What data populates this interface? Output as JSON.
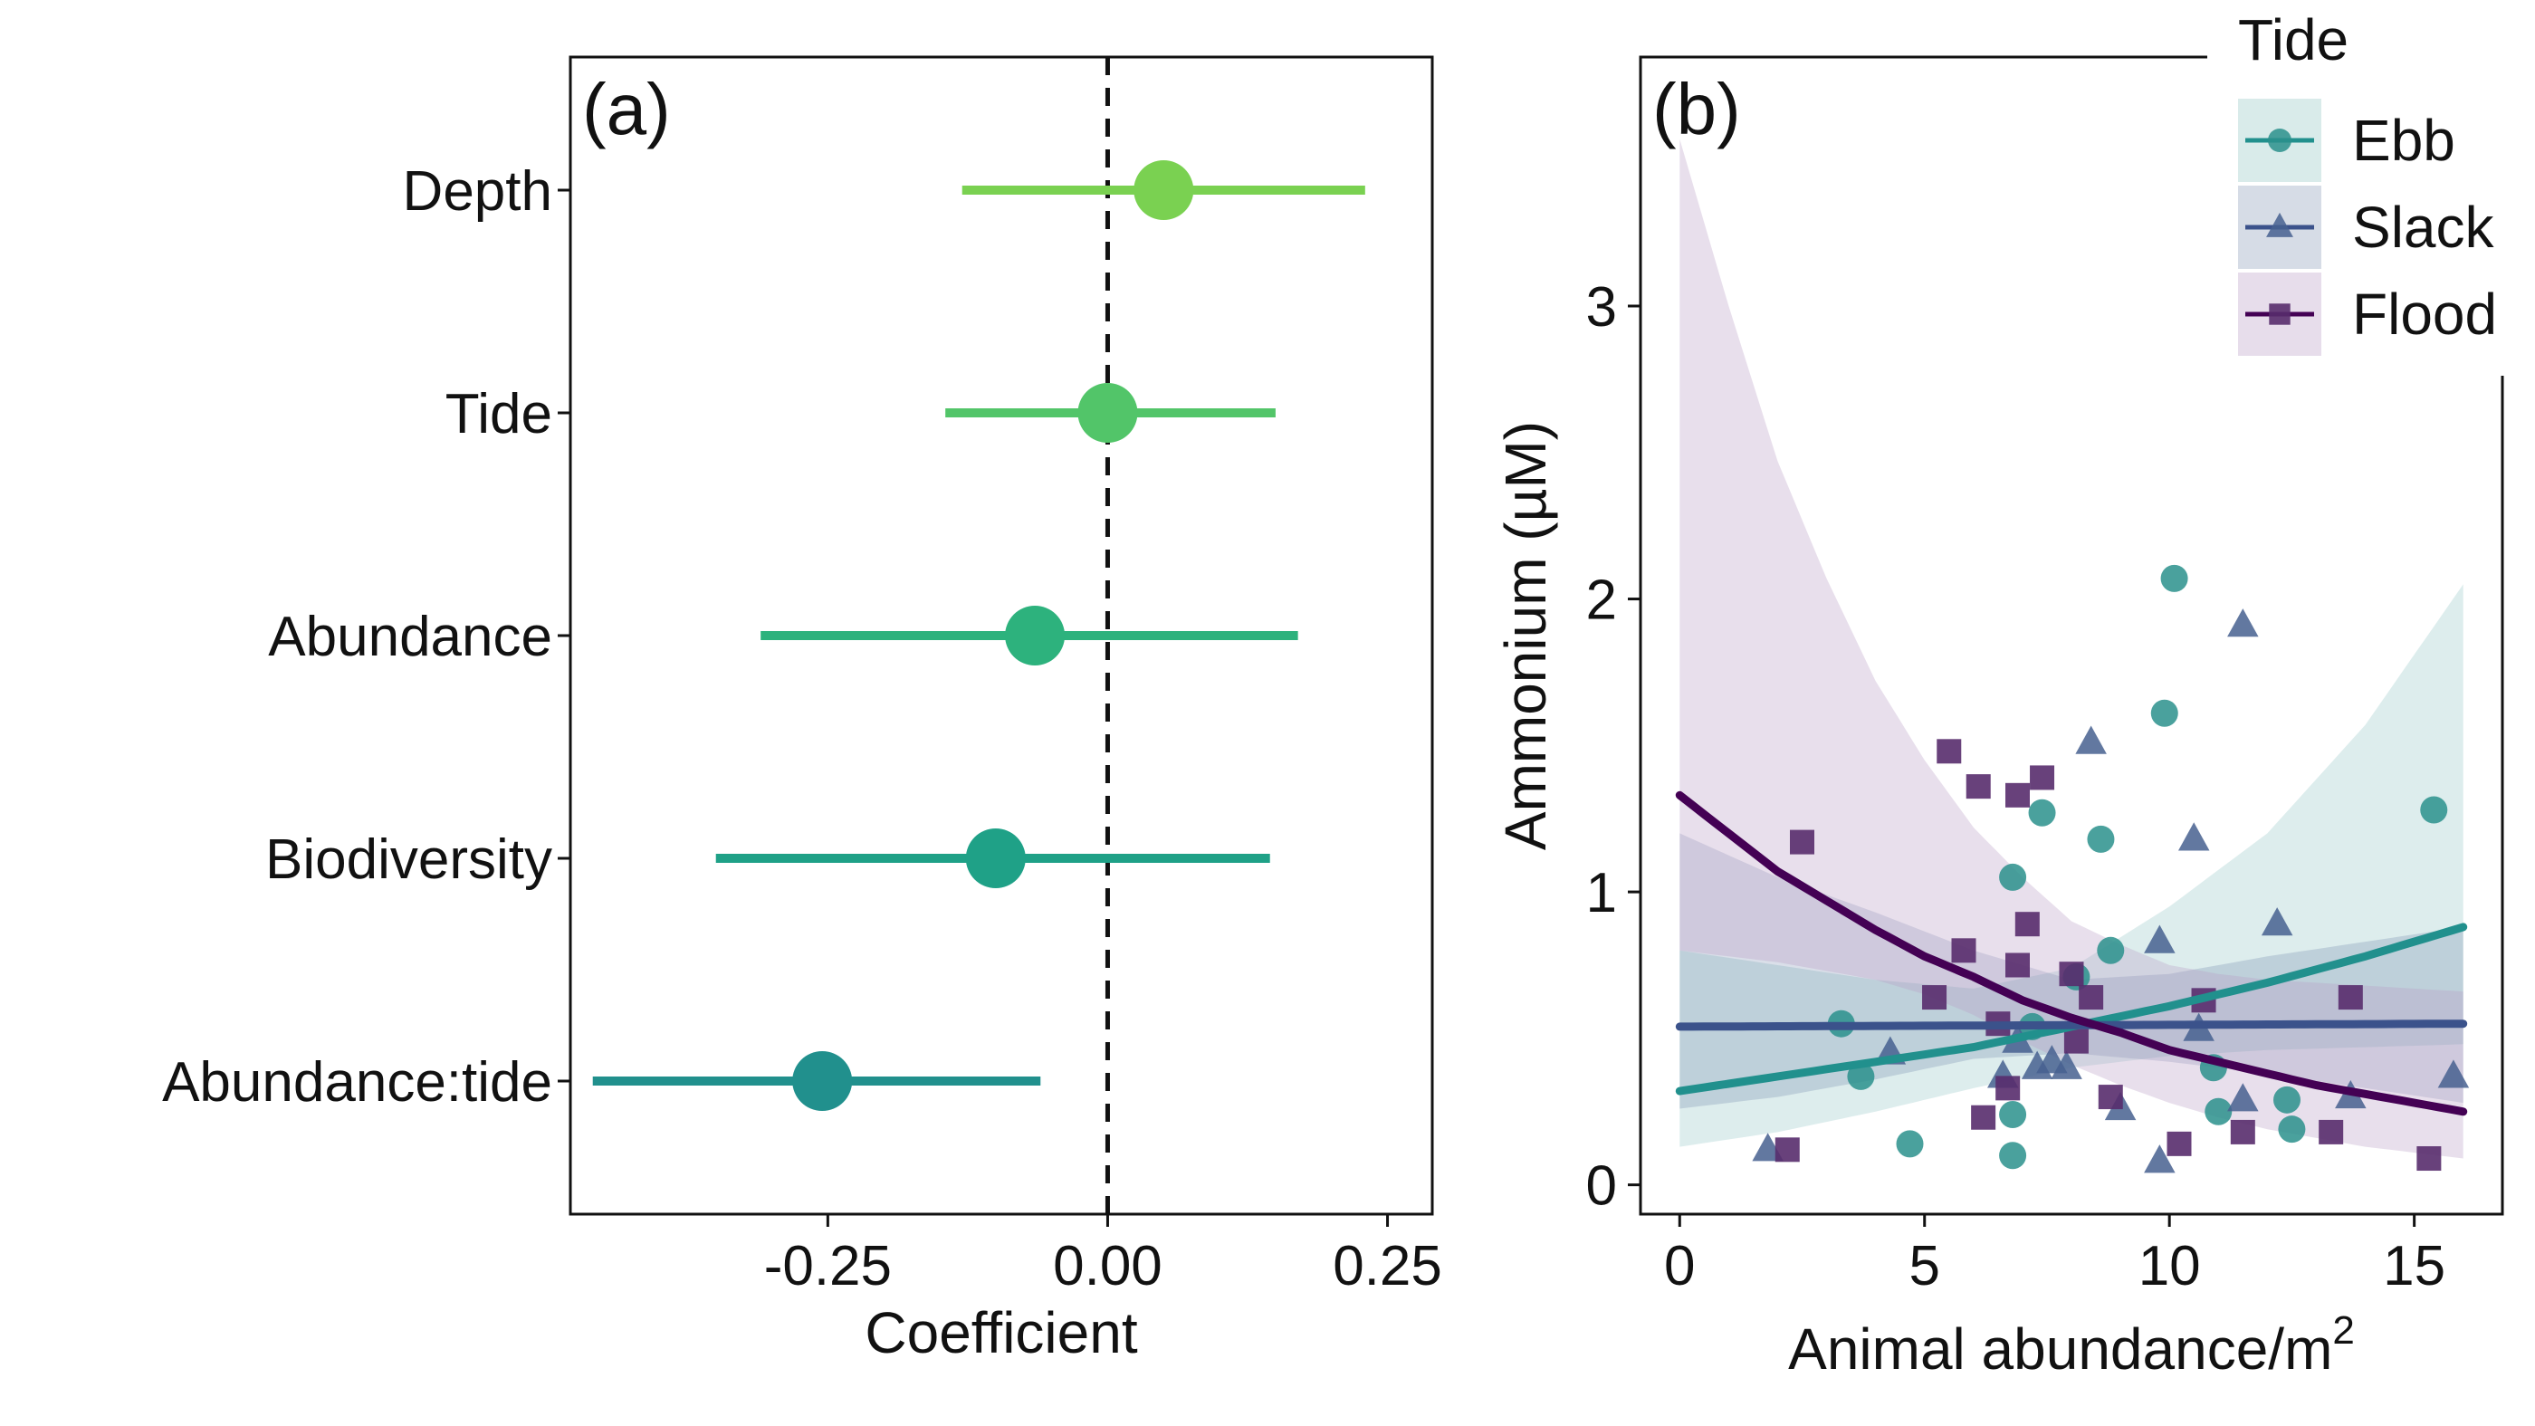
{
  "chart_data": [
    {
      "type": "scatter",
      "panel_label": "(a)",
      "subtype": "coefficient-plot",
      "xlabel": "Coefficient",
      "ylabel": "",
      "xlim": [
        -0.48,
        0.29
      ],
      "xticks": [
        -0.25,
        0.0,
        0.25
      ],
      "xtick_labels": [
        "-0.25",
        "0.00",
        "0.25"
      ],
      "reference_line_x": 0,
      "grid": false,
      "terms": [
        {
          "label": "Depth",
          "estimate": 0.05,
          "low": -0.13,
          "high": 0.23,
          "color": "#7AD151"
        },
        {
          "label": "Tide",
          "estimate": 0.0,
          "low": -0.145,
          "high": 0.15,
          "color": "#52C569"
        },
        {
          "label": "Abundance",
          "estimate": -0.065,
          "low": -0.31,
          "high": 0.17,
          "color": "#2DB27D"
        },
        {
          "label": "Biodiversity",
          "estimate": -0.1,
          "low": -0.35,
          "high": 0.145,
          "color": "#1FA187"
        },
        {
          "label": "Abundance:tide",
          "estimate": -0.255,
          "low": -0.46,
          "high": -0.06,
          "color": "#21908D"
        }
      ]
    },
    {
      "type": "scatter",
      "panel_label": "(b)",
      "xlabel": "Animal abundance/m",
      "xlabel_superscript": "2",
      "ylabel": "Ammonium (µM)",
      "xlim": [
        -0.8,
        16.8
      ],
      "ylim": [
        -0.1,
        3.85
      ],
      "xticks": [
        0,
        5,
        10,
        15
      ],
      "xtick_labels": [
        "0",
        "5",
        "10",
        "15"
      ],
      "yticks": [
        0,
        1,
        2,
        3
      ],
      "ytick_labels": [
        "0",
        "1",
        "2",
        "3"
      ],
      "grid": false,
      "legend": {
        "title": "Tide",
        "placement": "top-right"
      },
      "series": [
        {
          "name": "Ebb",
          "marker": "circle",
          "color": "#2A908C",
          "band_color": "#2A908C",
          "points": [
            [
              3.3,
              0.55
            ],
            [
              3.7,
              0.37
            ],
            [
              4.7,
              0.14
            ],
            [
              6.8,
              0.1
            ],
            [
              6.8,
              0.24
            ],
            [
              6.8,
              1.05
            ],
            [
              7.2,
              0.54
            ],
            [
              7.4,
              1.27
            ],
            [
              8.1,
              0.71
            ],
            [
              8.6,
              1.18
            ],
            [
              8.8,
              0.8
            ],
            [
              9.9,
              1.61
            ],
            [
              10.1,
              2.07
            ],
            [
              10.9,
              0.4
            ],
            [
              11.0,
              0.25
            ],
            [
              12.4,
              0.29
            ],
            [
              12.5,
              0.19
            ],
            [
              15.4,
              1.28
            ]
          ],
          "fit": [
            [
              0,
              0.32
            ],
            [
              2,
              0.37
            ],
            [
              4,
              0.42
            ],
            [
              6,
              0.47
            ],
            [
              8,
              0.54
            ],
            [
              10,
              0.61
            ],
            [
              12,
              0.69
            ],
            [
              14,
              0.78
            ],
            [
              16,
              0.88
            ]
          ],
          "band_low": [
            [
              0,
              0.13
            ],
            [
              2,
              0.18
            ],
            [
              4,
              0.25
            ],
            [
              6,
              0.33
            ],
            [
              8,
              0.4
            ],
            [
              10,
              0.44
            ],
            [
              12,
              0.46
            ],
            [
              14,
              0.47
            ],
            [
              16,
              0.48
            ]
          ],
          "band_high": [
            [
              0,
              0.8
            ],
            [
              2,
              0.75
            ],
            [
              4,
              0.7
            ],
            [
              6,
              0.67
            ],
            [
              8,
              0.74
            ],
            [
              10,
              0.95
            ],
            [
              12,
              1.2
            ],
            [
              14,
              1.57
            ],
            [
              16,
              2.05
            ]
          ]
        },
        {
          "name": "Slack",
          "marker": "triangle",
          "color": "#46608F",
          "band_color": "#46608F",
          "points": [
            [
              1.8,
              0.12
            ],
            [
              4.3,
              0.45
            ],
            [
              6.6,
              0.37
            ],
            [
              6.9,
              0.49
            ],
            [
              7.3,
              0.4
            ],
            [
              7.6,
              0.42
            ],
            [
              7.9,
              0.4
            ],
            [
              8.4,
              1.51
            ],
            [
              9.0,
              0.26
            ],
            [
              9.8,
              0.08
            ],
            [
              9.8,
              0.83
            ],
            [
              10.5,
              1.18
            ],
            [
              10.6,
              0.53
            ],
            [
              11.5,
              1.91
            ],
            [
              11.5,
              0.29
            ],
            [
              12.2,
              0.89
            ],
            [
              13.7,
              0.3
            ],
            [
              15.8,
              0.37
            ]
          ],
          "fit": [
            [
              0,
              0.54
            ],
            [
              16,
              0.55
            ]
          ],
          "band_low": [
            [
              0,
              0.26
            ],
            [
              2,
              0.3
            ],
            [
              4,
              0.36
            ],
            [
              6,
              0.43
            ],
            [
              8,
              0.45
            ],
            [
              10,
              0.42
            ],
            [
              12,
              0.38
            ],
            [
              14,
              0.33
            ],
            [
              16,
              0.28
            ]
          ],
          "band_high": [
            [
              0,
              1.2
            ],
            [
              2,
              1.05
            ],
            [
              4,
              0.93
            ],
            [
              6,
              0.8
            ],
            [
              8,
              0.7
            ],
            [
              10,
              0.72
            ],
            [
              12,
              0.78
            ],
            [
              14,
              0.83
            ],
            [
              16,
              0.88
            ]
          ]
        },
        {
          "name": "Flood",
          "marker": "square",
          "color": "#582C6D",
          "band_color": "#B99BC4",
          "points": [
            [
              2.2,
              0.12
            ],
            [
              2.5,
              1.17
            ],
            [
              5.2,
              0.64
            ],
            [
              5.5,
              1.48
            ],
            [
              5.8,
              0.8
            ],
            [
              6.1,
              1.36
            ],
            [
              6.2,
              0.23
            ],
            [
              6.5,
              0.55
            ],
            [
              6.7,
              0.33
            ],
            [
              6.9,
              1.33
            ],
            [
              6.9,
              0.75
            ],
            [
              7.1,
              0.89
            ],
            [
              7.4,
              1.39
            ],
            [
              8.0,
              0.72
            ],
            [
              8.1,
              0.49
            ],
            [
              8.4,
              0.64
            ],
            [
              8.8,
              0.3
            ],
            [
              10.2,
              0.14
            ],
            [
              10.7,
              0.63
            ],
            [
              11.5,
              0.18
            ],
            [
              13.3,
              0.18
            ],
            [
              13.7,
              0.64
            ],
            [
              15.3,
              0.09
            ]
          ],
          "fit": [
            [
              0,
              1.33
            ],
            [
              1,
              1.2
            ],
            [
              2,
              1.07
            ],
            [
              3,
              0.97
            ],
            [
              4,
              0.87
            ],
            [
              5,
              0.78
            ],
            [
              6,
              0.71
            ],
            [
              7,
              0.63
            ],
            [
              8,
              0.57
            ],
            [
              9,
              0.52
            ],
            [
              10,
              0.46
            ],
            [
              11,
              0.42
            ],
            [
              12,
              0.38
            ],
            [
              13,
              0.34
            ],
            [
              14,
              0.31
            ],
            [
              15,
              0.28
            ],
            [
              16,
              0.25
            ]
          ],
          "band_low": [
            [
              0,
              0.8
            ],
            [
              1,
              0.78
            ],
            [
              2,
              0.76
            ],
            [
              3,
              0.73
            ],
            [
              4,
              0.7
            ],
            [
              5,
              0.65
            ],
            [
              6,
              0.58
            ],
            [
              7,
              0.49
            ],
            [
              8,
              0.41
            ],
            [
              9,
              0.34
            ],
            [
              10,
              0.28
            ],
            [
              11,
              0.23
            ],
            [
              12,
              0.19
            ],
            [
              13,
              0.16
            ],
            [
              14,
              0.13
            ],
            [
              15,
              0.11
            ],
            [
              16,
              0.09
            ]
          ],
          "band_high": [
            [
              0,
              3.57
            ],
            [
              1,
              3.0
            ],
            [
              2,
              2.47
            ],
            [
              3,
              2.07
            ],
            [
              4,
              1.72
            ],
            [
              5,
              1.45
            ],
            [
              6,
              1.22
            ],
            [
              7,
              1.05
            ],
            [
              8,
              0.9
            ],
            [
              9,
              0.82
            ],
            [
              10,
              0.75
            ],
            [
              11,
              0.72
            ],
            [
              12,
              0.7
            ],
            [
              13,
              0.69
            ],
            [
              14,
              0.68
            ],
            [
              15,
              0.67
            ],
            [
              16,
              0.66
            ]
          ]
        }
      ]
    }
  ]
}
